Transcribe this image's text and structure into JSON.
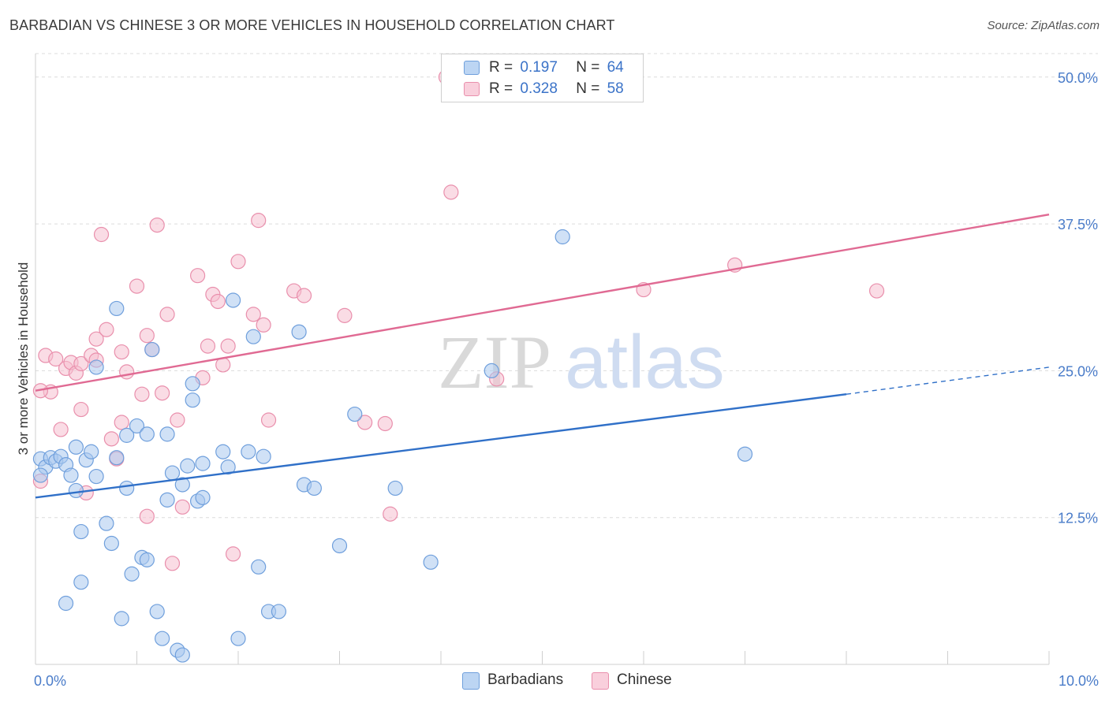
{
  "title": "BARBADIAN VS CHINESE 3 OR MORE VEHICLES IN HOUSEHOLD CORRELATION CHART",
  "source": "Source: ZipAtlas.com",
  "watermark": {
    "zip": "ZIP",
    "atlas": "atlas"
  },
  "legend": {
    "rows": [
      {
        "r_label": "R =",
        "r_value": "0.197",
        "n_label": "N =",
        "n_value": "64"
      },
      {
        "r_label": "R =",
        "r_value": "0.328",
        "n_label": "N =",
        "n_value": "58"
      }
    ]
  },
  "colors": {
    "barbadians_fill": "#a9c8ef",
    "barbadians_stroke": "#6f9fdc",
    "barbadians_line": "#3070c8",
    "chinese_fill": "#f6bfd0",
    "chinese_stroke": "#e98fac",
    "chinese_line": "#e06a93",
    "grid": "#dcdcdc",
    "axis_text": "#4a7cc9"
  },
  "chart_data": {
    "type": "scatter",
    "title": "BARBADIAN VS CHINESE 3 OR MORE VEHICLES IN HOUSEHOLD CORRELATION CHART",
    "xlabel": "",
    "ylabel": "3 or more Vehicles in Household",
    "xlim": [
      0,
      10
    ],
    "ylim": [
      0,
      52
    ],
    "x_ticks": [
      {
        "value": 0,
        "label": "0.0%"
      },
      {
        "value": 10,
        "label": "10.0%"
      }
    ],
    "y_ticks": [
      {
        "value": 12.5,
        "label": "12.5%"
      },
      {
        "value": 25,
        "label": "25.0%"
      },
      {
        "value": 37.5,
        "label": "37.5%"
      },
      {
        "value": 50,
        "label": "50.0%"
      }
    ],
    "grid": true,
    "legend_position": "bottom",
    "series": [
      {
        "name": "Barbadians",
        "r": 0.197,
        "n": 64,
        "trend": {
          "x0": 0,
          "y0": 14.2,
          "x1": 8,
          "y1": 23.0,
          "dash_to_x": 10,
          "dash_to_y": 25.3
        },
        "points": [
          [
            0.05,
            17.5
          ],
          [
            0.1,
            16.8
          ],
          [
            0.15,
            17.6
          ],
          [
            0.2,
            17.3
          ],
          [
            0.25,
            17.7
          ],
          [
            0.3,
            17.0
          ],
          [
            0.35,
            16.1
          ],
          [
            0.4,
            14.8
          ],
          [
            0.4,
            18.5
          ],
          [
            0.45,
            11.3
          ],
          [
            0.5,
            17.4
          ],
          [
            0.55,
            18.1
          ],
          [
            0.6,
            16.0
          ],
          [
            0.6,
            25.3
          ],
          [
            0.7,
            12.0
          ],
          [
            0.75,
            10.3
          ],
          [
            0.8,
            17.6
          ],
          [
            0.8,
            30.3
          ],
          [
            0.85,
            3.9
          ],
          [
            0.9,
            15.0
          ],
          [
            0.9,
            19.5
          ],
          [
            0.95,
            7.7
          ],
          [
            1.0,
            20.3
          ],
          [
            1.05,
            9.1
          ],
          [
            1.1,
            8.9
          ],
          [
            1.1,
            19.6
          ],
          [
            1.15,
            26.8
          ],
          [
            1.2,
            4.5
          ],
          [
            1.25,
            2.2
          ],
          [
            1.3,
            14.0
          ],
          [
            1.3,
            19.6
          ],
          [
            1.35,
            16.3
          ],
          [
            1.4,
            1.2
          ],
          [
            1.45,
            0.8
          ],
          [
            1.45,
            15.3
          ],
          [
            1.5,
            16.9
          ],
          [
            1.55,
            22.5
          ],
          [
            1.55,
            23.9
          ],
          [
            1.6,
            13.9
          ],
          [
            1.65,
            14.2
          ],
          [
            1.65,
            17.1
          ],
          [
            1.85,
            18.1
          ],
          [
            1.9,
            16.8
          ],
          [
            1.95,
            31.0
          ],
          [
            2.0,
            2.2
          ],
          [
            2.1,
            18.1
          ],
          [
            2.15,
            27.9
          ],
          [
            2.2,
            8.3
          ],
          [
            2.25,
            17.7
          ],
          [
            2.3,
            4.5
          ],
          [
            2.6,
            28.3
          ],
          [
            2.65,
            15.3
          ],
          [
            2.75,
            15.0
          ],
          [
            3.0,
            10.1
          ],
          [
            3.15,
            21.3
          ],
          [
            3.55,
            15.0
          ],
          [
            3.9,
            8.7
          ],
          [
            4.5,
            25.0
          ],
          [
            5.2,
            36.4
          ],
          [
            7.0,
            17.9
          ],
          [
            0.05,
            16.1
          ],
          [
            0.3,
            5.2
          ],
          [
            0.45,
            7.0
          ],
          [
            2.4,
            4.5
          ]
        ]
      },
      {
        "name": "Chinese",
        "r": 0.328,
        "n": 58,
        "trend": {
          "x0": 0,
          "y0": 23.3,
          "x1": 10,
          "y1": 38.3
        },
        "points": [
          [
            0.05,
            15.6
          ],
          [
            0.1,
            26.3
          ],
          [
            0.15,
            23.2
          ],
          [
            0.2,
            26.0
          ],
          [
            0.25,
            20.0
          ],
          [
            0.3,
            25.2
          ],
          [
            0.35,
            25.7
          ],
          [
            0.4,
            24.8
          ],
          [
            0.45,
            25.6
          ],
          [
            0.45,
            21.7
          ],
          [
            0.5,
            14.6
          ],
          [
            0.55,
            26.3
          ],
          [
            0.6,
            25.9
          ],
          [
            0.6,
            27.7
          ],
          [
            0.65,
            36.6
          ],
          [
            0.7,
            28.5
          ],
          [
            0.75,
            19.2
          ],
          [
            0.8,
            17.5
          ],
          [
            0.85,
            20.6
          ],
          [
            0.85,
            26.6
          ],
          [
            0.9,
            24.9
          ],
          [
            1.0,
            32.2
          ],
          [
            1.05,
            23.0
          ],
          [
            1.1,
            28.0
          ],
          [
            1.1,
            12.6
          ],
          [
            1.15,
            26.8
          ],
          [
            1.2,
            37.4
          ],
          [
            1.25,
            23.1
          ],
          [
            1.3,
            29.8
          ],
          [
            1.35,
            8.6
          ],
          [
            1.4,
            20.8
          ],
          [
            1.45,
            13.4
          ],
          [
            1.6,
            33.1
          ],
          [
            1.65,
            24.4
          ],
          [
            1.7,
            27.1
          ],
          [
            1.75,
            31.5
          ],
          [
            1.8,
            30.9
          ],
          [
            1.85,
            25.5
          ],
          [
            1.9,
            27.1
          ],
          [
            1.95,
            9.4
          ],
          [
            2.0,
            34.3
          ],
          [
            2.15,
            29.8
          ],
          [
            2.2,
            37.8
          ],
          [
            2.25,
            28.9
          ],
          [
            2.3,
            20.8
          ],
          [
            2.55,
            31.8
          ],
          [
            2.65,
            31.4
          ],
          [
            3.05,
            29.7
          ],
          [
            3.25,
            20.6
          ],
          [
            3.45,
            20.5
          ],
          [
            3.5,
            12.8
          ],
          [
            4.05,
            50.0
          ],
          [
            4.1,
            40.2
          ],
          [
            4.55,
            24.3
          ],
          [
            6.0,
            31.9
          ],
          [
            6.9,
            34.0
          ],
          [
            8.3,
            31.8
          ],
          [
            0.05,
            23.3
          ]
        ]
      }
    ]
  },
  "bottom_legend": [
    {
      "label": "Barbadians"
    },
    {
      "label": "Chinese"
    }
  ]
}
